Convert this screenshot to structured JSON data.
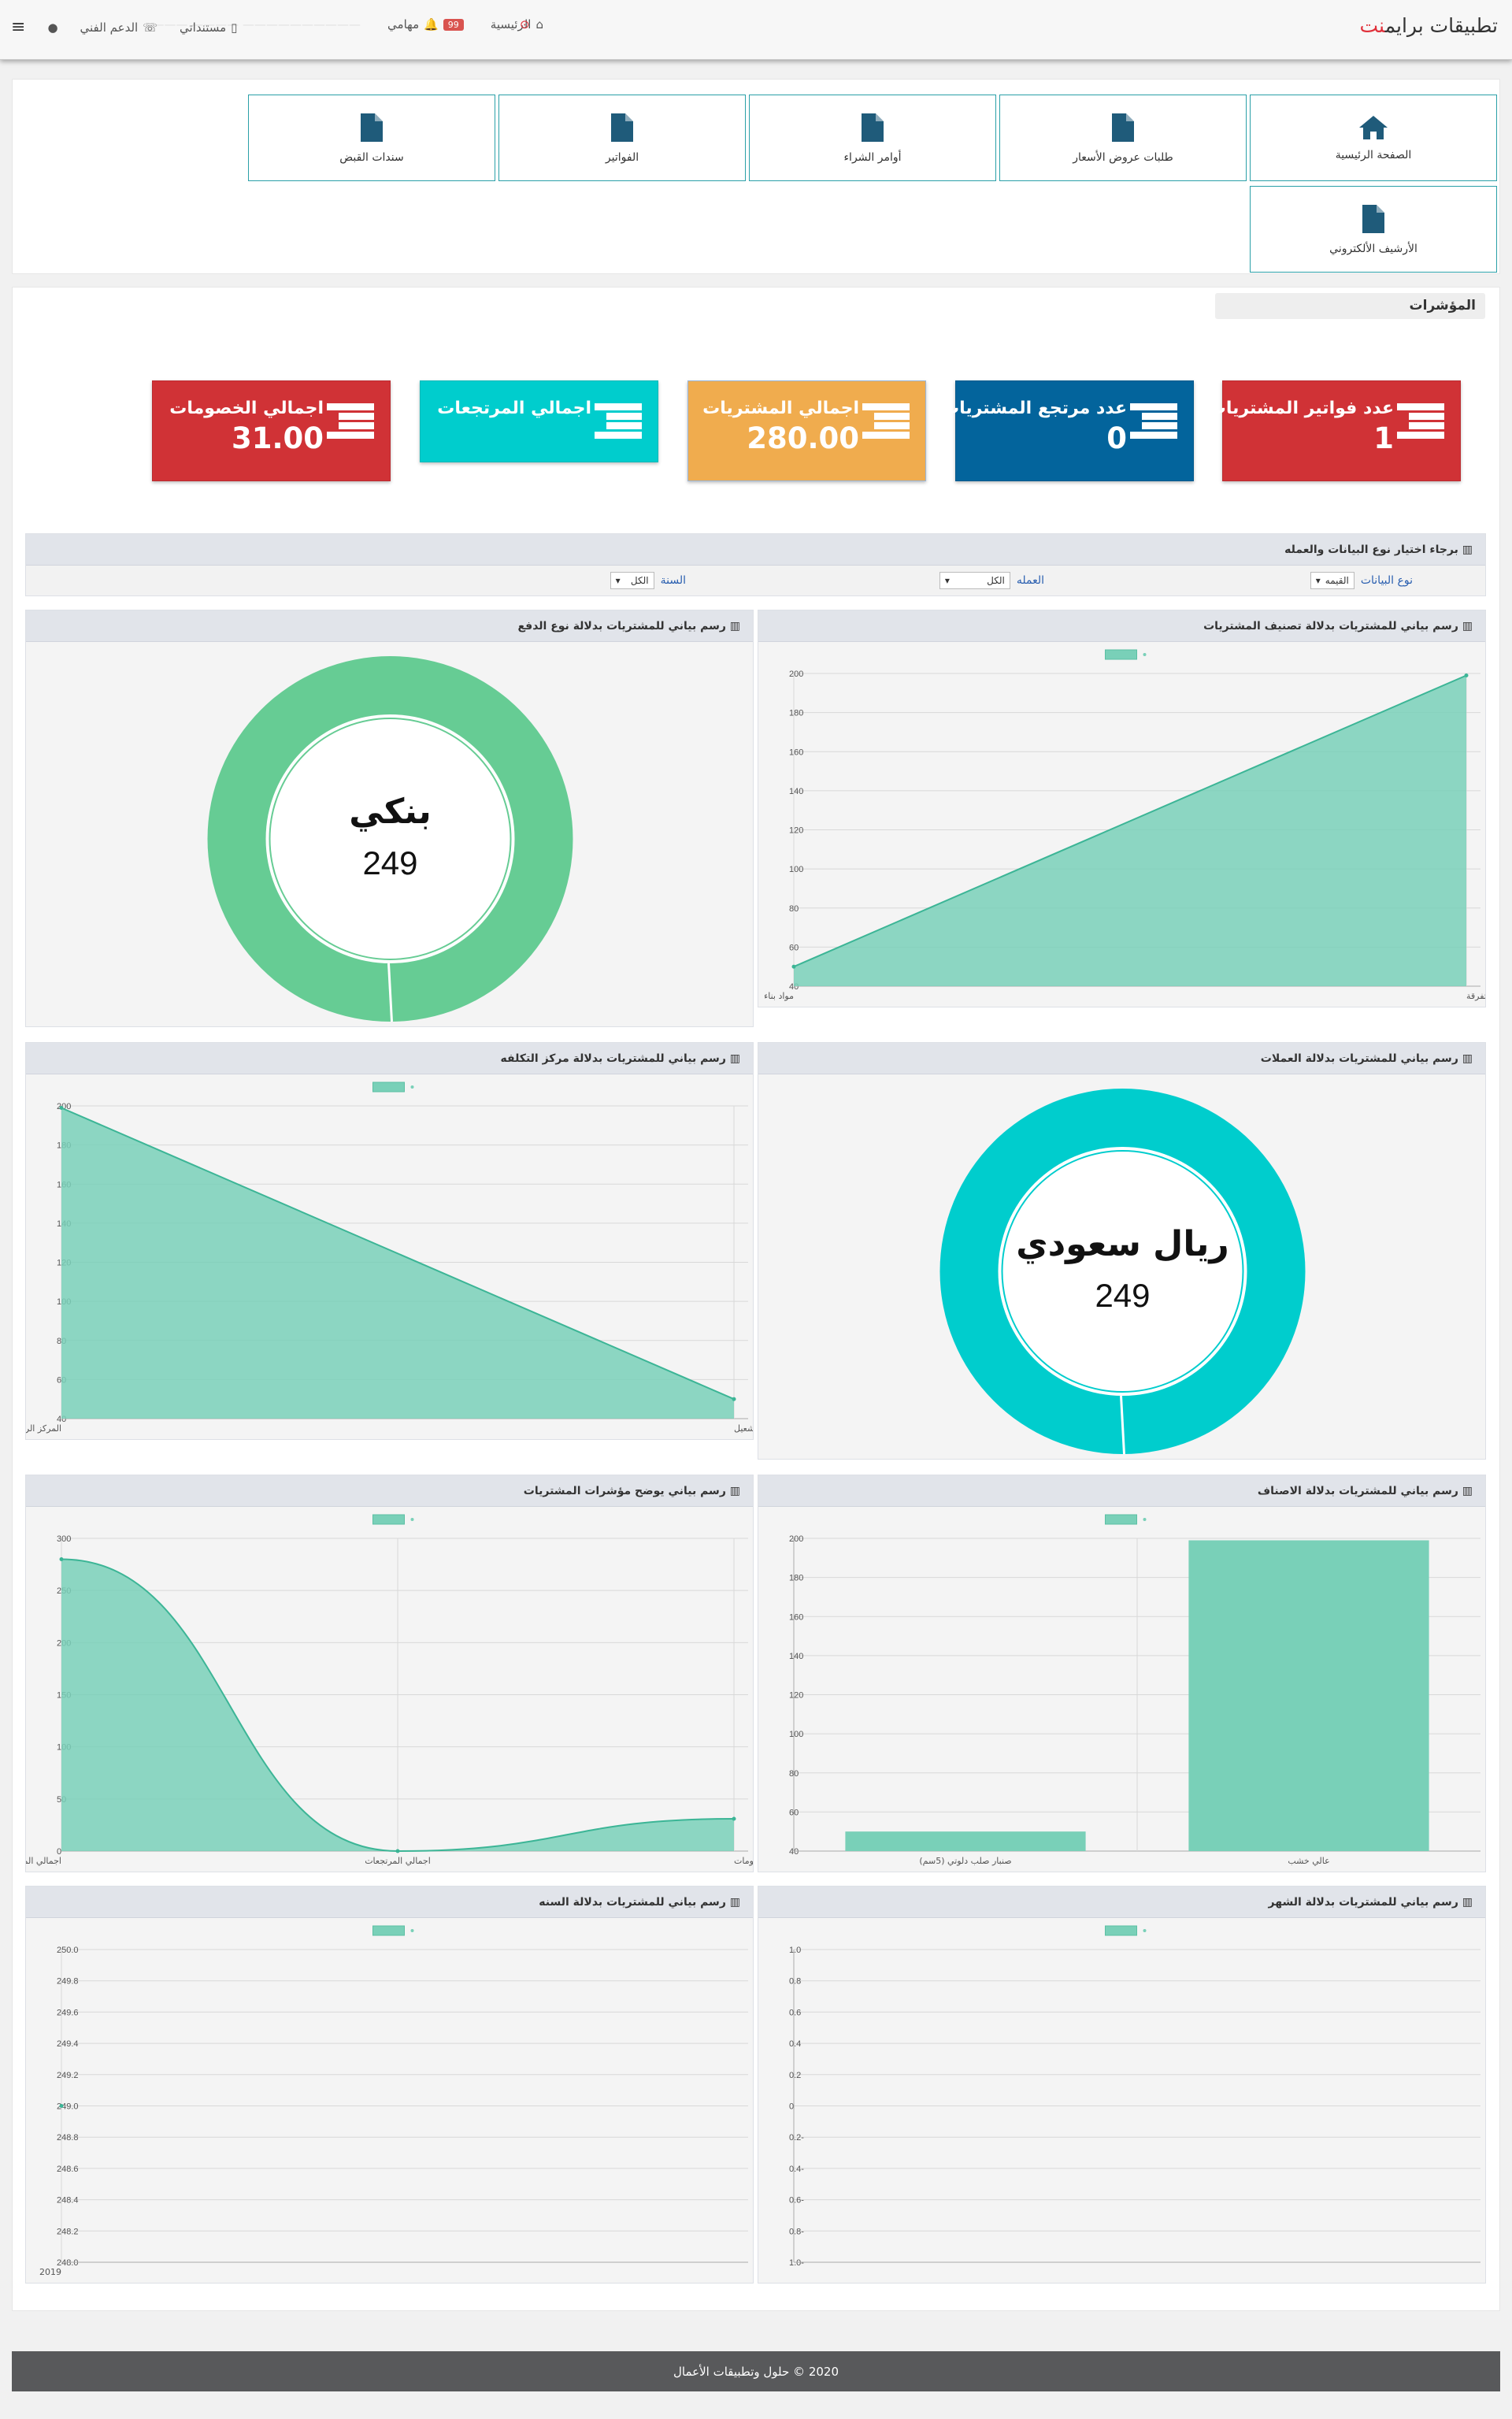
{
  "header": {
    "brand_main": "تطبيقات برايم",
    "brand_accent": "نت",
    "nav_home": "الرئيسية",
    "nav_tasks": "مهامي",
    "tasks_badge": "99",
    "nav_documents": "مستنداتي",
    "nav_support": "الدعم الفني",
    "faded_text": "—————————— ———— ———"
  },
  "tiles": [
    {
      "label": "الصفحة الرئيسية",
      "icon": "home-icon"
    },
    {
      "label": "طلبات عروض الأسعار",
      "icon": "file-icon"
    },
    {
      "label": "أوامر الشراء",
      "icon": "file-icon"
    },
    {
      "label": "الفواتير",
      "icon": "file-icon"
    },
    {
      "label": "سندات القبض",
      "icon": "file-icon"
    },
    {
      "label": "الأرشيف الألكتروني",
      "icon": "file-icon"
    }
  ],
  "indicators_title": "المؤشرات",
  "kpis": [
    {
      "label": "عدد فواتير المشتريات",
      "value": "1",
      "color": "#d03236"
    },
    {
      "label": "عدد مرتجع المشتريات",
      "value": "0",
      "color": "#03649c"
    },
    {
      "label": "اجمالي المشتريات",
      "value": "280.00",
      "color": "#f0ac4e"
    },
    {
      "label": "اجمالي المرتجعات",
      "value": "",
      "color": "#00cdcd"
    },
    {
      "label": "اجمالي الخصومات",
      "value": "31.00",
      "color": "#d03236"
    }
  ],
  "filter": {
    "title": "برجاء اختيار نوع البيانات والعمله",
    "data_type_label": "نوع البيانات",
    "data_type_value": "القيمه",
    "currency_label": "العمله",
    "currency_value": "الكل",
    "year_label": "السنة",
    "year_value": "الكل"
  },
  "cards": {
    "classification": "رسم بياني للمشتريات بدلالة تصنيف المشتريات",
    "payment": "رسم بياني للمشتريات بدلالة نوع الدفع",
    "currencies": "رسم بياني للمشتريات بدلالة العملات",
    "cost_center": "رسم بياني للمشتريات بدلالة مركز التكلفه",
    "items": "رسم بياني للمشتريات بدلالة الاصناف",
    "indicators": "رسم بياني يوضح مؤشرات المشتريات",
    "month": "رسم بياني للمشتريات بدلالة الشهر",
    "year": "رسم بياني للمشتريات بدلالة السنه"
  },
  "chart_data": [
    {
      "id": "classification",
      "type": "area",
      "categories": [
        "مواد بناء",
        "اخرى متفرقة"
      ],
      "values": [
        50,
        199
      ],
      "ylim": [
        40,
        200
      ],
      "yticks": [
        40,
        60,
        80,
        100,
        120,
        140,
        160,
        180,
        200
      ],
      "color": "#79d0b8"
    },
    {
      "id": "payment",
      "type": "pie",
      "label": "بنكي",
      "value": "249",
      "slices": [
        249
      ],
      "color": "#66cc94"
    },
    {
      "id": "currencies",
      "type": "pie",
      "label": "ريال سعودي",
      "value": "249",
      "slices": [
        249
      ],
      "color": "#00cdcd"
    },
    {
      "id": "cost_center",
      "type": "area",
      "categories": [
        "المركز الرئيسي",
        "مشروع انشاء منطقة عبور - الشعيل"
      ],
      "values": [
        199,
        50
      ],
      "ylim": [
        40,
        200
      ],
      "yticks": [
        40,
        60,
        80,
        100,
        120,
        140,
        160,
        180,
        200
      ],
      "color": "#79d0b8"
    },
    {
      "id": "items",
      "type": "bar",
      "categories": [
        "صنبار صلب دلوتي (5سم)",
        "عالي خشب"
      ],
      "values": [
        50,
        199
      ],
      "ylim": [
        40,
        200
      ],
      "yticks": [
        40,
        60,
        80,
        100,
        120,
        140,
        160,
        180,
        200
      ],
      "color": "#79d0b8"
    },
    {
      "id": "indicators",
      "type": "area",
      "categories": [
        "اجمالي المشتريات",
        "اجمالي المرتجعات",
        "اجمالي الخصومات"
      ],
      "values": [
        280,
        0,
        31
      ],
      "ylim": [
        0,
        300
      ],
      "yticks": [
        0,
        50,
        100,
        150,
        200,
        250,
        300
      ],
      "color": "#79d0b8"
    },
    {
      "id": "month",
      "type": "line",
      "categories": [],
      "values": [],
      "ylim": [
        -1,
        1
      ],
      "yticks": [
        "-1.0",
        "-0.8",
        "-0.6",
        "-0.4",
        "-0.2",
        "0",
        "0.2",
        "0.4",
        "0.6",
        "0.8",
        "1.0"
      ],
      "color": "#79d0b8"
    },
    {
      "id": "year",
      "type": "line",
      "categories": [
        "2019"
      ],
      "values": [
        249
      ],
      "ylim": [
        248,
        250
      ],
      "yticks": [
        "248.0",
        "248.2",
        "248.4",
        "248.6",
        "248.8",
        "249.0",
        "249.2",
        "249.4",
        "249.6",
        "249.8",
        "250.0"
      ],
      "color": "#79d0b8"
    }
  ],
  "footer": "2020 © حلول وتطبيقات الأعمال"
}
